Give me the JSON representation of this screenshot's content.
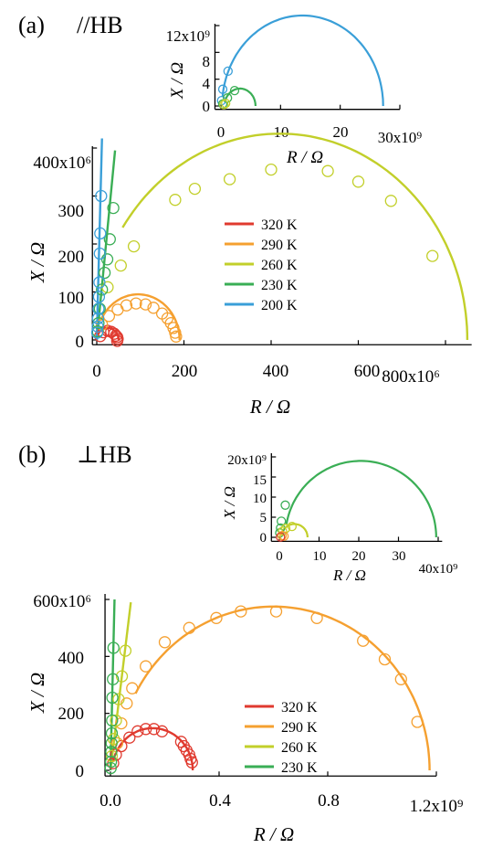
{
  "panel_a": {
    "label": "(a)",
    "title": "//HB",
    "main": {
      "x_axis": {
        "label": "R / Ω",
        "ticks": [
          "0",
          "200",
          "400",
          "600",
          "800x10⁶"
        ]
      },
      "y_axis": {
        "label": "X / Ω",
        "ticks": [
          "0",
          "100",
          "200",
          "300",
          "400x10⁶"
        ]
      }
    },
    "inset": {
      "x_axis": {
        "label": "R / Ω",
        "ticks": [
          "0",
          "10",
          "20",
          "30x10⁹"
        ]
      },
      "y_axis": {
        "label": "X / Ω",
        "ticks": [
          "0",
          "4",
          "8",
          "12x10⁹"
        ]
      }
    },
    "legend": [
      "320 K",
      "290 K",
      "260 K",
      "230 K",
      "200 K"
    ]
  },
  "panel_b": {
    "label": "(b)",
    "title": "⊥HB",
    "main": {
      "x_axis": {
        "label": "R / Ω",
        "ticks": [
          "0.0",
          "0.4",
          "0.8",
          "1.2x10⁹"
        ]
      },
      "y_axis": {
        "label": "X / Ω",
        "ticks": [
          "0",
          "200",
          "400",
          "600x10⁶"
        ]
      }
    },
    "inset": {
      "x_axis": {
        "label": "R / Ω",
        "ticks": [
          "0",
          "10",
          "20",
          "30",
          "40x10⁹"
        ]
      },
      "y_axis": {
        "label": "X / Ω",
        "ticks": [
          "0",
          "5",
          "10",
          "15",
          "20x10⁹"
        ]
      }
    },
    "legend": [
      "320 K",
      "290 K",
      "260 K",
      "230 K"
    ]
  },
  "colors": {
    "320 K": "#e03a2f",
    "290 K": "#f5a030",
    "260 K": "#c2cf2a",
    "230 K": "#3aae55",
    "200 K": "#3a9fd8"
  },
  "chart_data": [
    {
      "id": "a_main",
      "type": "scatter",
      "xlabel": "R / Ω",
      "ylabel": "X / Ω",
      "xlim": [
        -10000000.0,
        860000000.0
      ],
      "ylim": [
        -10000000.0,
        400000000.0
      ],
      "series": [
        {
          "name": "320 K",
          "fit": {
            "c": 25000000.0,
            "r": 25000000.0,
            "phi": 15
          },
          "points": [
            [
              8000000.0,
              8000000.0
            ],
            [
              15000000.0,
              16000000.0
            ],
            [
              25000000.0,
              19000000.0
            ],
            [
              33000000.0,
              17000000.0
            ],
            [
              40000000.0,
              13000000.0
            ],
            [
              44000000.0,
              9000000.0
            ],
            [
              47000000.0,
              6000000.0
            ],
            [
              48000000.0,
              2000000.0
            ],
            [
              47000000.0,
              -2000000.0
            ]
          ]
        },
        {
          "name": "290 K",
          "fit": {
            "c": 95000000.0,
            "r": 95000000.0,
            "phi": 25
          },
          "points": [
            [
              12000000.0,
              32000000.0
            ],
            [
              28000000.0,
              50000000.0
            ],
            [
              48000000.0,
              63000000.0
            ],
            [
              68000000.0,
              72000000.0
            ],
            [
              90000000.0,
              76000000.0
            ],
            [
              112000000.0,
              74000000.0
            ],
            [
              130000000.0,
              67000000.0
            ],
            [
              150000000.0,
              55000000.0
            ],
            [
              162000000.0,
              45000000.0
            ],
            [
              170000000.0,
              35000000.0
            ],
            [
              176000000.0,
              25000000.0
            ],
            [
              180000000.0,
              15000000.0
            ],
            [
              182000000.0,
              7000000.0
            ]
          ]
        },
        {
          "name": "260 K",
          "fit": {
            "c": 420000000.0,
            "r": 430000000.0,
            "phi": 33
          },
          "points": [
            [
              25000000.0,
              110000000.0
            ],
            [
              55000000.0,
              155000000.0
            ],
            [
              85000000.0,
              195000000.0
            ],
            [
              180000000.0,
              292000000.0
            ],
            [
              225000000.0,
              315000000.0
            ],
            [
              305000000.0,
              335000000.0
            ],
            [
              400000000.0,
              355000000.0
            ],
            [
              530000000.0,
              352000000.0
            ],
            [
              600000000.0,
              330000000.0
            ],
            [
              675000000.0,
              290000000.0
            ],
            [
              770000000.0,
              175000000.0
            ]
          ]
        },
        {
          "name": "230 K",
          "steep": {
            "end": [
              42000000.0,
              395000000.0
            ]
          },
          "points": [
            [
              2000000.0,
              18000000.0
            ],
            [
              4000000.0,
              35000000.0
            ],
            [
              7000000.0,
              65000000.0
            ],
            [
              12000000.0,
              105000000.0
            ],
            [
              18000000.0,
              140000000.0
            ],
            [
              24000000.0,
              168000000.0
            ],
            [
              30000000.0,
              210000000.0
            ],
            [
              38000000.0,
              275000000.0
            ]
          ]
        },
        {
          "name": "200 K",
          "steep": {
            "end": [
              12000000.0,
              420000000.0
            ]
          },
          "points": [
            [
              1000000.0,
              15000000.0
            ],
            [
              2000000.0,
              28000000.0
            ],
            [
              3000000.0,
              45000000.0
            ],
            [
              4000000.0,
              65000000.0
            ],
            [
              5000000.0,
              90000000.0
            ],
            [
              6000000.0,
              120000000.0
            ],
            [
              7000000.0,
              180000000.0
            ],
            [
              8000000.0,
              222000000.0
            ],
            [
              10000000.0,
              300000000.0
            ]
          ]
        }
      ]
    },
    {
      "id": "a_inset",
      "type": "scatter",
      "xlabel": "R / Ω",
      "ylabel": "X / Ω",
      "xlim": [
        -1000000000.0,
        30000000000.0
      ],
      "ylim": [
        -500000000.0,
        13000000000.0
      ],
      "series": [
        {
          "name": "200 K",
          "fit": {
            "c": 13700000000.0,
            "r": 13500000000.0,
            "phi": 6
          },
          "points": [
            [
              1200000000.0,
              5200000000.0
            ],
            [
              300000000.0,
              2500000000.0
            ],
            [
              100000000.0,
              800000000.0
            ]
          ]
        },
        {
          "name": "230 K",
          "fit": {
            "c": 3200000000.0,
            "r": 2600000000.0,
            "phi": 12
          },
          "points": [
            [
              2300000000.0,
              2300000000.0
            ],
            [
              1100000000.0,
              1200000000.0
            ],
            [
              300000000.0,
              300000000.0
            ]
          ]
        },
        {
          "name": "260 K",
          "points": [
            [
              800000000.0,
              400000000.0
            ],
            [
              500000000.0,
              200000000.0
            ]
          ]
        }
      ]
    },
    {
      "id": "b_main",
      "type": "scatter",
      "xlabel": "R / Ω",
      "ylabel": "X / Ω",
      "xlim": [
        -20000000.0,
        1200000000.0
      ],
      "ylim": [
        -20000000.0,
        600000000.0
      ],
      "series": [
        {
          "name": "320 K",
          "fit": {
            "c": 155000000.0,
            "r": 148000000.0,
            "phi": 12
          },
          "points": [
            [
              10000000.0,
              25000000.0
            ],
            [
              20000000.0,
              55000000.0
            ],
            [
              40000000.0,
              85000000.0
            ],
            [
              70000000.0,
              115000000.0
            ],
            [
              100000000.0,
              137000000.0
            ],
            [
              130000000.0,
              145000000.0
            ],
            [
              160000000.0,
              145000000.0
            ],
            [
              190000000.0,
              137000000.0
            ],
            [
              260000000.0,
              100000000.0
            ],
            [
              270000000.0,
              85000000.0
            ],
            [
              280000000.0,
              70000000.0
            ],
            [
              290000000.0,
              55000000.0
            ],
            [
              295000000.0,
              40000000.0
            ],
            [
              300000000.0,
              28000000.0
            ]
          ]
        },
        {
          "name": "290 K",
          "fit": {
            "c": 600000000.0,
            "r": 575000000.0,
            "phi": 28
          },
          "points": [
            [
              25000000.0,
              95000000.0
            ],
            [
              40000000.0,
              165000000.0
            ],
            [
              60000000.0,
              235000000.0
            ],
            [
              80000000.0,
              288000000.0
            ],
            [
              130000000.0,
              365000000.0
            ],
            [
              200000000.0,
              450000000.0
            ],
            [
              290000000.0,
              500000000.0
            ],
            [
              390000000.0,
              535000000.0
            ],
            [
              480000000.0,
              558000000.0
            ],
            [
              610000000.0,
              558000000.0
            ],
            [
              760000000.0,
              535000000.0
            ],
            [
              930000000.0,
              455000000.0
            ],
            [
              1010000000.0,
              390000000.0
            ],
            [
              1070000000.0,
              320000000.0
            ],
            [
              1130000000.0,
              170000000.0
            ]
          ]
        },
        {
          "name": "260 K",
          "steep": {
            "end": [
              75000000.0,
              590000000.0
            ]
          },
          "points": [
            [
              5000000.0,
              50000000.0
            ],
            [
              12000000.0,
              110000000.0
            ],
            [
              20000000.0,
              175000000.0
            ],
            [
              30000000.0,
              250000000.0
            ],
            [
              42000000.0,
              330000000.0
            ],
            [
              55000000.0,
              420000000.0
            ]
          ]
        },
        {
          "name": "230 K",
          "steep": {
            "end": [
              15000000.0,
              600000000.0
            ]
          },
          "points": [
            [
              1000000.0,
              8000000.0
            ],
            [
              2000000.0,
              30000000.0
            ],
            [
              3000000.0,
              65000000.0
            ],
            [
              4000000.0,
              95000000.0
            ],
            [
              5000000.0,
              130000000.0
            ],
            [
              6000000.0,
              175000000.0
            ],
            [
              7000000.0,
              255000000.0
            ],
            [
              9000000.0,
              320000000.0
            ],
            [
              11000000.0,
              430000000.0
            ]
          ]
        }
      ]
    },
    {
      "id": "b_inset",
      "type": "scatter",
      "xlabel": "R / Ω",
      "ylabel": "X / Ω",
      "xlim": [
        -2000000000.0,
        41000000000.0
      ],
      "ylim": [
        -1000000000.0,
        21000000000.0
      ],
      "series": [
        {
          "name": "230 K",
          "fit": {
            "c": 20500000000.0,
            "r": 19000000000.0,
            "phi": 10
          },
          "points": [
            [
              1500000000.0,
              8000000000.0
            ],
            [
              500000000.0,
              4000000000.0
            ],
            [
              300000000.0,
              2300000000.0
            ],
            [
              100000000.0,
              1100000000.0
            ]
          ]
        },
        {
          "name": "260 K",
          "fit": {
            "c": 3800000000.0,
            "r": 3300000000.0,
            "phi": 10
          },
          "points": [
            [
              3200000000.0,
              2700000000.0
            ],
            [
              1600000000.0,
              2200000000.0
            ],
            [
              800000000.0,
              1500000000.0
            ]
          ]
        },
        {
          "name": "290 K",
          "points": [
            [
              700000000.0,
              400000000.0
            ],
            [
              1200000000.0,
              300000000.0
            ]
          ]
        },
        {
          "name": "320 K",
          "points": [
            [
              300000000.0,
              100000000.0
            ]
          ]
        }
      ]
    }
  ]
}
